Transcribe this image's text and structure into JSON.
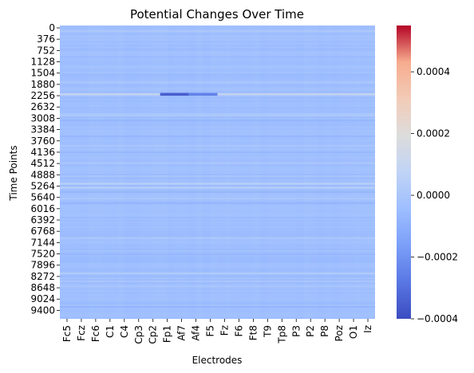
{
  "chart_data": {
    "type": "heatmap",
    "title": "Potential Changes Over Time",
    "xlabel": "Electrodes",
    "ylabel": "Time Points",
    "x_ticks": [
      "Fc5",
      "Fcz",
      "Fc6",
      "C1",
      "C4",
      "Cp3",
      "Cp2",
      "Fp1",
      "Af7",
      "Af4",
      "F5",
      "Fz",
      "F6",
      "Ft8",
      "T9",
      "Tp8",
      "P3",
      "P2",
      "P8",
      "Poz",
      "O1",
      "Iz"
    ],
    "y_ticks": [
      0,
      376,
      752,
      1128,
      1504,
      1880,
      2256,
      2632,
      3008,
      3384,
      3760,
      4136,
      4512,
      4888,
      5264,
      5640,
      6016,
      6392,
      6768,
      7144,
      7520,
      7896,
      8272,
      8648,
      9024,
      9400
    ],
    "n_time_points": 9760,
    "colorbar": {
      "colormap": "coolwarm",
      "vmin": -0.0004,
      "vmax": 0.00055,
      "ticks": [
        -0.0004,
        -0.0002,
        0.0,
        0.0002,
        0.0004
      ],
      "tick_labels": [
        "−0.0004",
        "−0.0002",
        "0.0000",
        "0.0002",
        "0.0004"
      ]
    },
    "typical_value": -4e-05,
    "row_features": [
      {
        "time": 2290,
        "value": 0.00012
      },
      {
        "time": 5264,
        "value": 6e-05
      },
      {
        "time": 5400,
        "value": 5e-05
      },
      {
        "time": 8250,
        "value": 3e-05
      },
      {
        "time": 3000,
        "value": 2e-05
      }
    ],
    "hotspots": [
      {
        "electrode_start": "Fp1",
        "electrode_end": "Af7",
        "time": 2290,
        "value": -0.00035
      },
      {
        "electrode_start": "Af4",
        "electrode_end": "F5",
        "time": 2290,
        "value": -0.00025
      }
    ]
  }
}
